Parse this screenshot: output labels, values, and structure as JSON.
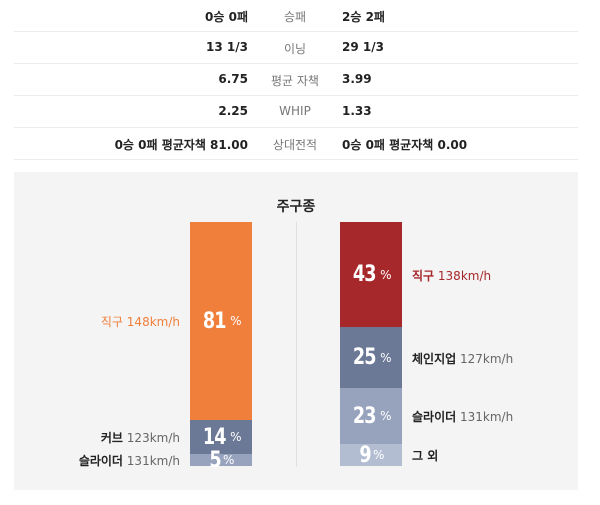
{
  "stats": [
    {
      "left": "0승 0패",
      "label": "승패",
      "right": "2승 2패"
    },
    {
      "left": "13 1/3",
      "label": "이닝",
      "right": "29 1/3"
    },
    {
      "left": "6.75",
      "label": "평균 자책",
      "right": "3.99"
    },
    {
      "left": "2.25",
      "label": "WHIP",
      "right": "1.33"
    },
    {
      "left": "0승 0패 평균자책 81.00",
      "label": "상대전적",
      "right": "0승 0패 평균자책 0.00"
    }
  ],
  "pitch_title": "주구종",
  "left_pitches": [
    {
      "name": "직구",
      "speed": "148km/h",
      "pct": 81,
      "color": "#f07f3c"
    },
    {
      "name": "커브",
      "speed": "123km/h",
      "pct": 14,
      "color": "#6b7896"
    },
    {
      "name": "슬라이더",
      "speed": "131km/h",
      "pct": 5,
      "color": "#97a2bd"
    }
  ],
  "right_pitches": [
    {
      "name": "직구",
      "speed": "138km/h",
      "pct": 43,
      "color": "#a7282b"
    },
    {
      "name": "체인지업",
      "speed": "127km/h",
      "pct": 25,
      "color": "#6b7896"
    },
    {
      "name": "슬라이더",
      "speed": "131km/h",
      "pct": 23,
      "color": "#97a2bd"
    },
    {
      "name": "그 외",
      "speed": "",
      "pct": 9,
      "color": "#b3bdd2"
    }
  ],
  "percent_sign": "%",
  "colors": {
    "left_primary_label": "#f07f3c",
    "right_primary_label": "#a7282b"
  }
}
